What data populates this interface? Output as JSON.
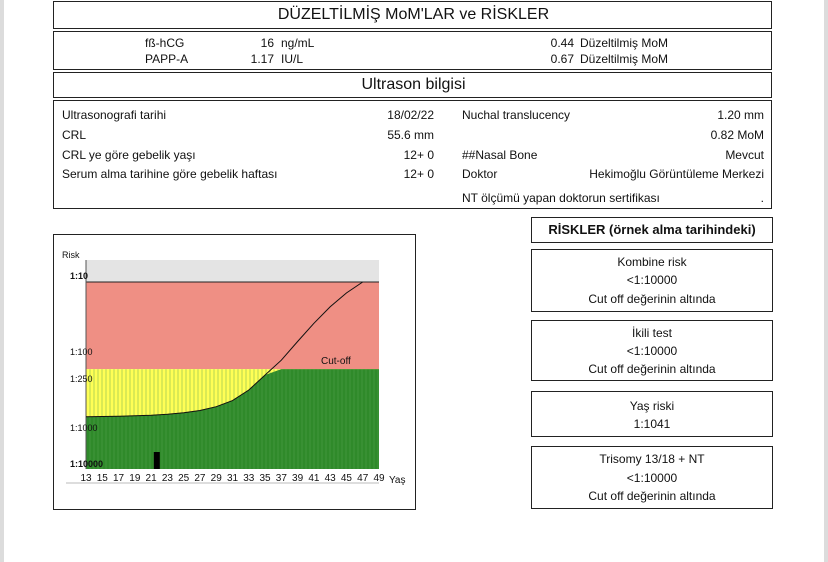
{
  "header": {
    "title": "DÜZELTİLMİŞ  MoM'LAR ve RİSKLER"
  },
  "markers": [
    {
      "name": "fß-hCG",
      "value": "16",
      "unit": "ng/mL",
      "mom": "0.44",
      "mom_label": "Düzeltilmiş  MoM"
    },
    {
      "name": "PAPP-A",
      "value": "1.17",
      "unit": "IU/L",
      "mom": "0.67",
      "mom_label": "Düzeltilmiş  MoM"
    }
  ],
  "ultrasound": {
    "title": "Ultrason bilgisi",
    "left_rows": [
      {
        "label": "Ultrasonografi tarihi",
        "value": "18/02/22"
      },
      {
        "label": "CRL",
        "value": "55.6 mm"
      },
      {
        "label": "CRL ye göre gebelik yaşı",
        "value": "12+  0"
      },
      {
        "label": "Serum alma tarihine göre gebelik haftası",
        "value": "12+  0"
      }
    ],
    "right_rows": [
      {
        "label": "Nuchal translucency",
        "value": "1.20  mm"
      },
      {
        "label": "",
        "value": "0.82 MoM"
      },
      {
        "label": "##Nasal Bone",
        "value": "Mevcut"
      },
      {
        "label": "Doktor",
        "value": "Hekimoğlu Görüntüleme Merkezi"
      },
      {
        "label": "NT ölçümü yapan doktorun sertifikası",
        "value": "."
      }
    ]
  },
  "risks": {
    "title": "RİSKLER (örnek alma tarihindeki)",
    "boxes": [
      {
        "title": "Kombine risk",
        "value": "<1:10000",
        "note": "Cut off değerinin altında"
      },
      {
        "title": "İkili test",
        "value": "<1:10000",
        "note": "Cut off değerinin altında"
      },
      {
        "title": "Yaş riski",
        "value": "1:1041",
        "note": ""
      },
      {
        "title": "Trisomy 13/18 + NT",
        "value": "<1:10000",
        "note": "Cut off değerinin altında"
      }
    ]
  },
  "chart_data": {
    "type": "area",
    "ylabel": "Risk",
    "xlabel": "Yaş",
    "y_ticks": [
      "1:10",
      "1:100",
      "1:250",
      "1:1000",
      "1:10000"
    ],
    "y_tick_denominators": [
      10,
      100,
      250,
      1000,
      10000
    ],
    "x_ticks": [
      13,
      15,
      17,
      19,
      21,
      23,
      25,
      27,
      29,
      31,
      33,
      35,
      37,
      39,
      41,
      43,
      45,
      47,
      49
    ],
    "xlim": [
      13,
      49
    ],
    "ylim_denominator": [
      10,
      10000
    ],
    "y_scale": "log",
    "cutoff_label": "Cut-off",
    "cutoff_denominator": 250,
    "zone_colors": {
      "high": "#ef8f84",
      "moderate": "#ffff55",
      "low": "#2f8a2a"
    },
    "curve_color": "#111111",
    "series": [
      {
        "x": [
          13,
          15,
          17,
          19,
          21,
          23,
          25,
          27,
          29,
          31,
          33,
          35,
          37,
          39,
          41,
          43,
          45,
          47
        ],
        "y_denominator": [
          1450,
          1440,
          1420,
          1400,
          1370,
          1320,
          1250,
          1150,
          1000,
          800,
          540,
          310,
          180,
          90,
          46,
          25,
          15,
          10
        ]
      }
    ],
    "patient_marker": {
      "age": 21.7,
      "risk_denominator": 10000
    }
  }
}
